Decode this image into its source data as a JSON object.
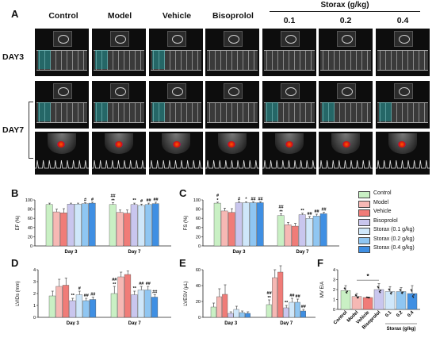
{
  "panel_labels": {
    "A": "A",
    "B": "B",
    "C": "C",
    "D": "D",
    "E": "E",
    "F": "F"
  },
  "image_panel": {
    "columns": [
      "Control",
      "Model",
      "Vehicle",
      "Bisoprolol",
      "0.1",
      "0.2",
      "0.4"
    ],
    "storax_header": "Storax (g/kg)",
    "rows": {
      "day3": "DAY3",
      "day7": "DAY7"
    }
  },
  "legend": {
    "items": [
      {
        "label": "Control",
        "color": "#c9f0c4"
      },
      {
        "label": "Model",
        "color": "#f6b8b4"
      },
      {
        "label": "Vehicle",
        "color": "#f07c78"
      },
      {
        "label": "Bisoprolol",
        "color": "#c9c6ee"
      },
      {
        "label": "Storax (0.1 g/kg)",
        "color": "#cfe7fa"
      },
      {
        "label": "Storax (0.2 g/kg)",
        "color": "#8fc6f2"
      },
      {
        "label": "Storax (0.4 g/kg)",
        "color": "#3f8fe3"
      }
    ]
  },
  "chart_data": [
    {
      "id": "B",
      "type": "bar",
      "ylabel": "EF (%)",
      "ylim": [
        0,
        100
      ],
      "yticks": [
        0,
        20,
        40,
        60,
        80,
        100
      ],
      "categories": [
        "Day 3",
        "Day 7"
      ],
      "series": [
        {
          "name": "Control",
          "values": [
            90,
            90
          ],
          "err": [
            3,
            4
          ]
        },
        {
          "name": "Model",
          "values": [
            74,
            73
          ],
          "err": [
            6,
            5
          ]
        },
        {
          "name": "Vehicle",
          "values": [
            72,
            71
          ],
          "err": [
            9,
            7
          ]
        },
        {
          "name": "Bisoprolol",
          "values": [
            91,
            90
          ],
          "err": [
            2,
            3
          ]
        },
        {
          "name": "Storax (0.1 g/kg)",
          "values": [
            91,
            88
          ],
          "err": [
            2,
            3
          ]
        },
        {
          "name": "Storax (0.2 g/kg)",
          "values": [
            92,
            90
          ],
          "err": [
            2,
            3
          ]
        },
        {
          "name": "Storax (0.4 g/kg)",
          "values": [
            93,
            92
          ],
          "err": [
            2,
            3
          ]
        }
      ],
      "annotations": [
        {
          "group": 1,
          "series": 0,
          "text": "##"
        },
        {
          "group": 1,
          "series": 0,
          "text2": "**"
        },
        {
          "group": 0,
          "series": 5,
          "text": "#"
        },
        {
          "group": 0,
          "series": 6,
          "text": "#"
        },
        {
          "group": 1,
          "series": 3,
          "text": "**"
        },
        {
          "group": 1,
          "series": 4,
          "text": "#"
        },
        {
          "group": 1,
          "series": 5,
          "text": "##"
        },
        {
          "group": 1,
          "series": 6,
          "text": "##"
        }
      ]
    },
    {
      "id": "C",
      "type": "bar",
      "ylabel": "FS (%)",
      "ylim": [
        0,
        100
      ],
      "yticks": [
        0,
        20,
        40,
        60,
        80,
        100
      ],
      "categories": [
        "Day 3",
        "Day 7"
      ],
      "series": [
        {
          "name": "Control",
          "values": [
            93,
            66
          ],
          "err": [
            2,
            4
          ]
        },
        {
          "name": "Model",
          "values": [
            76,
            46
          ],
          "err": [
            6,
            5
          ]
        },
        {
          "name": "Vehicle",
          "values": [
            73,
            43
          ],
          "err": [
            8,
            6
          ]
        },
        {
          "name": "Bisoprolol",
          "values": [
            94,
            68
          ],
          "err": [
            2,
            3
          ]
        },
        {
          "name": "Storax (0.1 g/kg)",
          "values": [
            94,
            60
          ],
          "err": [
            2,
            4
          ]
        },
        {
          "name": "Storax (0.2 g/kg)",
          "values": [
            94,
            65
          ],
          "err": [
            2,
            4
          ]
        },
        {
          "name": "Storax (0.4 g/kg)",
          "values": [
            94,
            70
          ],
          "err": [
            2,
            3
          ]
        }
      ],
      "annotations": [
        {
          "group": 0,
          "series": 0,
          "text": "#"
        },
        {
          "group": 0,
          "series": 0,
          "text2": "*"
        },
        {
          "group": 0,
          "series": 4,
          "text": "*"
        },
        {
          "group": 0,
          "series": 5,
          "text": "##"
        },
        {
          "group": 0,
          "series": 6,
          "text": "##"
        },
        {
          "group": 0,
          "series": 3,
          "text": "#"
        },
        {
          "group": 1,
          "series": 0,
          "text": "##"
        },
        {
          "group": 1,
          "series": 0,
          "text2": "**"
        },
        {
          "group": 1,
          "series": 3,
          "text": "**"
        },
        {
          "group": 1,
          "series": 4,
          "text": "##"
        },
        {
          "group": 1,
          "series": 5,
          "text": "##"
        },
        {
          "group": 1,
          "series": 6,
          "text": "##"
        }
      ]
    },
    {
      "id": "D",
      "type": "bar",
      "ylabel": "LVIDs (mm)",
      "ylim": [
        0,
        4
      ],
      "yticks": [
        0,
        1,
        2,
        3,
        4
      ],
      "categories": [
        "Day 3",
        "Day 7"
      ],
      "series": [
        {
          "name": "Control",
          "values": [
            1.8,
            2.0
          ],
          "err": [
            0.4,
            0.6
          ]
        },
        {
          "name": "Model",
          "values": [
            2.6,
            3.4
          ],
          "err": [
            0.6,
            0.4
          ]
        },
        {
          "name": "Vehicle",
          "values": [
            2.7,
            3.6
          ],
          "err": [
            0.6,
            0.3
          ]
        },
        {
          "name": "Bisoprolol",
          "values": [
            1.4,
            1.9
          ],
          "err": [
            0.2,
            0.3
          ]
        },
        {
          "name": "Storax (0.1 g/kg)",
          "values": [
            1.9,
            2.3
          ],
          "err": [
            0.3,
            0.3
          ]
        },
        {
          "name": "Storax (0.2 g/kg)",
          "values": [
            1.4,
            2.3
          ],
          "err": [
            0.2,
            0.3
          ]
        },
        {
          "name": "Storax (0.4 g/kg)",
          "values": [
            1.5,
            1.7
          ],
          "err": [
            0.2,
            0.2
          ]
        }
      ],
      "annotations": [
        {
          "group": 0,
          "series": 3,
          "text": "**"
        },
        {
          "group": 0,
          "series": 4,
          "text": "#"
        },
        {
          "group": 0,
          "series": 5,
          "text": "##"
        },
        {
          "group": 0,
          "series": 6,
          "text": "##"
        },
        {
          "group": 1,
          "series": 0,
          "text": "##"
        },
        {
          "group": 1,
          "series": 0,
          "text2": "**"
        },
        {
          "group": 1,
          "series": 3,
          "text": "**"
        },
        {
          "group": 1,
          "series": 4,
          "text": "##"
        },
        {
          "group": 1,
          "series": 5,
          "text": "##"
        },
        {
          "group": 1,
          "series": 6,
          "text": "##"
        }
      ]
    },
    {
      "id": "E",
      "type": "bar",
      "ylabel": "LVESV (μL)",
      "ylim": [
        0,
        60
      ],
      "yticks": [
        0,
        20,
        40,
        60
      ],
      "categories": [
        "Day 3",
        "Day 7"
      ],
      "series": [
        {
          "name": "Control",
          "values": [
            13,
            16
          ],
          "err": [
            5,
            6
          ]
        },
        {
          "name": "Model",
          "values": [
            26,
            50
          ],
          "err": [
            10,
            10
          ]
        },
        {
          "name": "Vehicle",
          "values": [
            29,
            57
          ],
          "err": [
            12,
            8
          ]
        },
        {
          "name": "Bisoprolol",
          "values": [
            5,
            12
          ],
          "err": [
            2,
            3
          ]
        },
        {
          "name": "Storax (0.1 g/kg)",
          "values": [
            10,
            19
          ],
          "err": [
            4,
            5
          ]
        },
        {
          "name": "Storax (0.2 g/kg)",
          "values": [
            6,
            19
          ],
          "err": [
            2,
            4
          ]
        },
        {
          "name": "Storax (0.4 g/kg)",
          "values": [
            5,
            8
          ],
          "err": [
            2,
            2
          ]
        }
      ],
      "annotations": [
        {
          "group": 1,
          "series": 0,
          "text": "##"
        },
        {
          "group": 1,
          "series": 0,
          "text2": "**"
        },
        {
          "group": 1,
          "series": 3,
          "text": "**"
        },
        {
          "group": 1,
          "series": 4,
          "text": "##"
        },
        {
          "group": 1,
          "series": 5,
          "text": "##"
        },
        {
          "group": 1,
          "series": 6,
          "text": "##"
        }
      ]
    },
    {
      "id": "F",
      "type": "bar",
      "ylabel": "MV E/A",
      "ylim": [
        0,
        4
      ],
      "yticks": [
        0,
        1,
        2,
        3,
        4
      ],
      "categories": [
        "Control",
        "Model",
        "Vehicle",
        "Bisoprolol",
        "0.1",
        "0.2",
        "0.4"
      ],
      "xgroup_label": "Storax (g/kg)",
      "values": [
        1.9,
        1.3,
        1.2,
        2.0,
        1.8,
        1.8,
        1.6
      ],
      "err": [
        0.5,
        0.3,
        0.05,
        0.6,
        0.5,
        0.4,
        0.8
      ],
      "significance": {
        "from": 1,
        "to": 3,
        "text": "*"
      }
    }
  ]
}
